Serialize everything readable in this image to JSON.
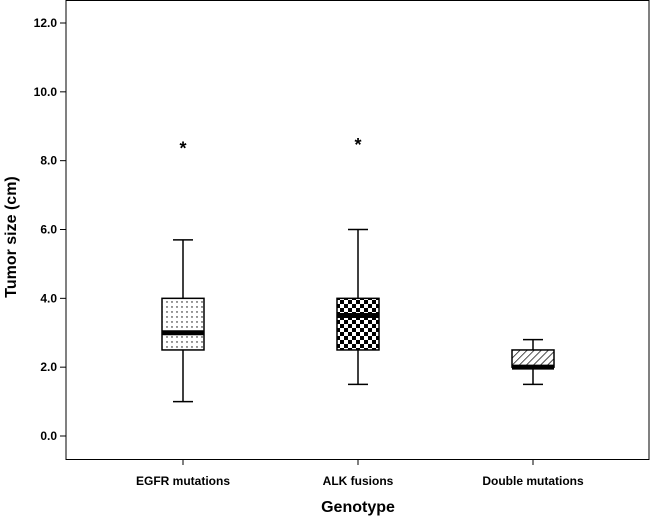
{
  "chart_data": {
    "type": "boxplot",
    "xlabel": "Genotype",
    "ylabel": "Tumor size (cm)",
    "ylim": [
      0,
      12.0
    ],
    "yticks": [
      "0.0",
      "2.0",
      "4.0",
      "6.0",
      "8.0",
      "10.0",
      "12.0"
    ],
    "ytick_values": [
      0,
      2,
      4,
      6,
      8,
      10,
      12
    ],
    "grid": false,
    "categories": [
      "EGFR mutations",
      "ALK fusions",
      "Double mutations"
    ],
    "boxes": [
      {
        "category": "EGFR mutations",
        "min": 1.0,
        "q1": 2.5,
        "median": 3.0,
        "q3": 4.0,
        "max": 5.7,
        "outliers": [
          8.5
        ],
        "pattern": "dots"
      },
      {
        "category": "ALK fusions",
        "min": 1.5,
        "q1": 2.5,
        "median": 3.5,
        "q3": 4.0,
        "max": 6.0,
        "outliers": [
          8.6
        ],
        "pattern": "checker"
      },
      {
        "category": "Double mutations",
        "min": 1.5,
        "q1": 2.0,
        "median": 2.0,
        "q3": 2.5,
        "max": 2.8,
        "outliers": [],
        "pattern": "diagonal"
      }
    ],
    "outlier_marker": "*"
  }
}
